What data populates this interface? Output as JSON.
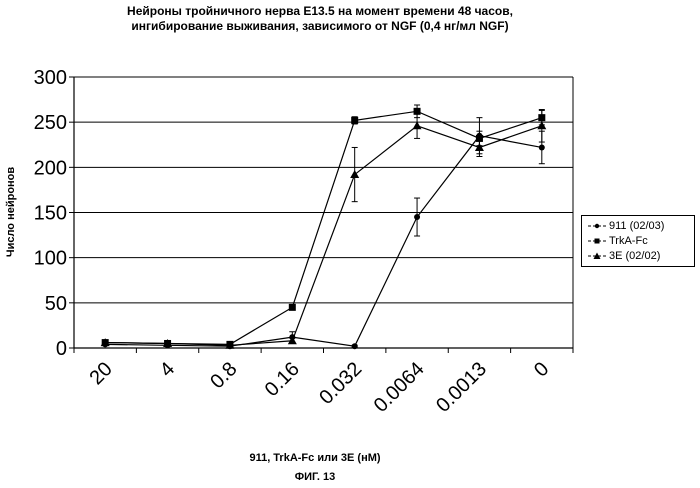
{
  "chart_data": {
    "type": "line",
    "title_lines": [
      "Нейроны тройничного нерва E13.5 на момент времени 48 часов,",
      "ингибирование выживания, зависимого от NGF (0,4 нг/мл NGF)"
    ],
    "xlabel": "911, TrkA-Fc или 3E (нМ)",
    "ylabel": "Число нейронов",
    "categories": [
      "20",
      "4",
      "0.8",
      "0.16",
      "0.032",
      "0.0064",
      "0.0013",
      "0"
    ],
    "ylim": [
      0,
      300
    ],
    "yticks": [
      0,
      50,
      100,
      150,
      200,
      250,
      300
    ],
    "grid": "horizontal",
    "legend_position": "right",
    "series": [
      {
        "name": "911 (02/03)",
        "marker": "circle",
        "values": [
          4,
          3,
          2,
          12,
          2,
          145,
          235,
          222
        ],
        "errors": [
          1,
          1,
          1,
          6,
          1,
          21,
          20,
          18
        ]
      },
      {
        "name": "TrkA-Fc",
        "marker": "square",
        "values": [
          6,
          5,
          4,
          45,
          252,
          262,
          232,
          255
        ],
        "errors": [
          1,
          1,
          1,
          2,
          4,
          7,
          8,
          8
        ]
      },
      {
        "name": "3E (02/02)",
        "marker": "triangle",
        "values": [
          6,
          5,
          3,
          8,
          192,
          246,
          222,
          246
        ],
        "errors": [
          1,
          1,
          1,
          3,
          30,
          14,
          10,
          18
        ]
      }
    ]
  },
  "caption": "ФИГ. 13"
}
